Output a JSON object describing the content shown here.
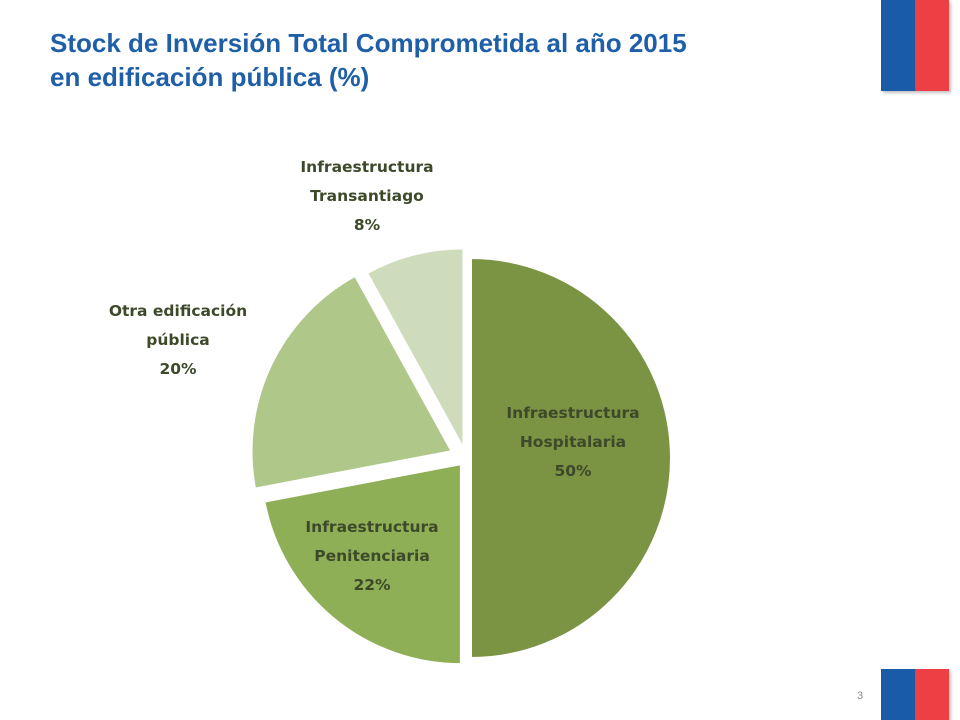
{
  "title": {
    "line1": "Stock de Inversión Total Comprometida al año 2015",
    "line2": "en edificación pública (%)"
  },
  "page_number": "3",
  "colors": {
    "title": "#1f5fa8",
    "flag_blue": "#1a5ba8",
    "flag_red": "#ee3f45",
    "label_text": "#3d4a2a"
  },
  "chart_data": {
    "type": "pie",
    "title": "Stock de Inversión Total Comprometida al año 2015 en edificación pública (%)",
    "exploded": true,
    "slices": [
      {
        "name_lines": [
          "Infraestructura",
          "Hospitalaria"
        ],
        "value": 50,
        "label": "50%",
        "color": "#7b9444"
      },
      {
        "name_lines": [
          "Infraestructura",
          "Penitenciaria"
        ],
        "value": 22,
        "label": "22%",
        "color": "#8faf57"
      },
      {
        "name_lines": [
          "Otra edificación",
          "pública"
        ],
        "value": 20,
        "label": "20%",
        "color": "#afc789"
      },
      {
        "name_lines": [
          "Infraestructura",
          "Transantiago"
        ],
        "value": 8,
        "label": "8%",
        "color": "#cfdcbb"
      }
    ]
  }
}
